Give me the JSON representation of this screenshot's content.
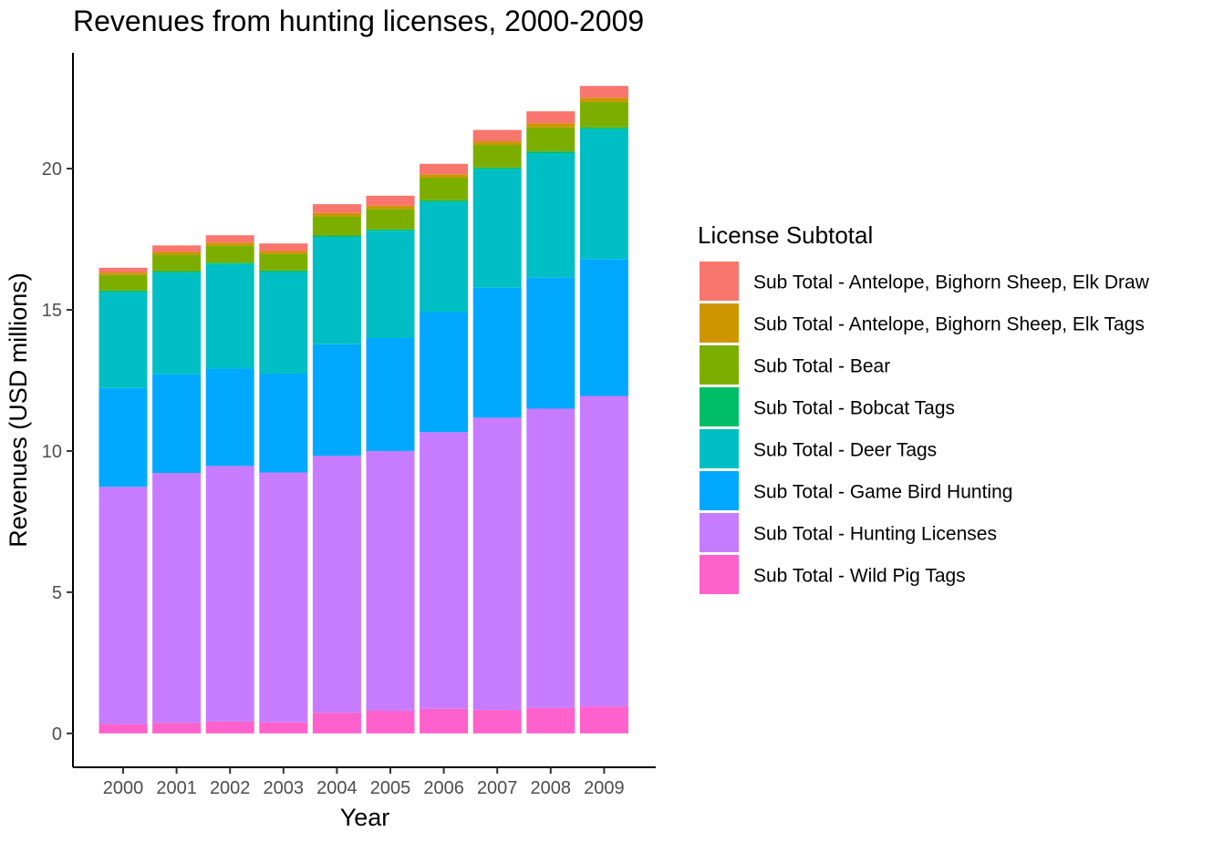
{
  "chart_data": {
    "type": "bar",
    "stacked": true,
    "title": "Revenues from hunting licenses, 2000-2009",
    "xlabel": "Year",
    "ylabel": "Revenues (USD millions)",
    "ylim": [
      -1.2,
      24.1
    ],
    "yticks": [
      0,
      5,
      10,
      15,
      20
    ],
    "grid": false,
    "legend_position": "right",
    "legend_title": "License Subtotal",
    "categories": [
      "2000",
      "2001",
      "2002",
      "2003",
      "2004",
      "2005",
      "2006",
      "2007",
      "2008",
      "2009"
    ],
    "series": [
      {
        "name": "Sub Total - Antelope, Bighorn Sheep, Elk Draw",
        "color": "#F8766D",
        "values": [
          0.17,
          0.23,
          0.26,
          0.27,
          0.31,
          0.35,
          0.37,
          0.4,
          0.42,
          0.42
        ]
      },
      {
        "name": "Sub Total - Antelope, Bighorn Sheep, Elk Tags",
        "color": "#CD9600",
        "values": [
          0.09,
          0.1,
          0.11,
          0.11,
          0.12,
          0.12,
          0.12,
          0.13,
          0.15,
          0.15
        ]
      },
      {
        "name": "Sub Total - Bear",
        "color": "#7CAE00",
        "values": [
          0.55,
          0.58,
          0.6,
          0.58,
          0.68,
          0.72,
          0.8,
          0.8,
          0.85,
          0.9
        ]
      },
      {
        "name": "Sub Total - Bobcat Tags",
        "color": "#00BE67",
        "values": [
          0.05,
          0.05,
          0.05,
          0.05,
          0.05,
          0.05,
          0.06,
          0.06,
          0.06,
          0.06
        ]
      },
      {
        "name": "Sub Total - Deer Tags",
        "color": "#00BFC4",
        "values": [
          3.4,
          3.6,
          3.7,
          3.6,
          3.8,
          3.8,
          3.9,
          4.2,
          4.4,
          4.6
        ]
      },
      {
        "name": "Sub Total - Game Bird Hunting",
        "color": "#00A9FF",
        "values": [
          3.5,
          3.5,
          3.45,
          3.5,
          3.95,
          4.0,
          4.25,
          4.6,
          4.65,
          4.85
        ]
      },
      {
        "name": "Sub Total - Hunting Licenses",
        "color": "#C77CFF",
        "values": [
          8.4,
          8.85,
          9.05,
          8.85,
          9.1,
          9.2,
          9.8,
          10.35,
          10.6,
          11.0
        ]
      },
      {
        "name": "Sub Total - Wild Pig Tags",
        "color": "#FF61CC",
        "values": [
          0.33,
          0.37,
          0.42,
          0.39,
          0.73,
          0.8,
          0.87,
          0.83,
          0.9,
          0.95
        ]
      }
    ]
  }
}
